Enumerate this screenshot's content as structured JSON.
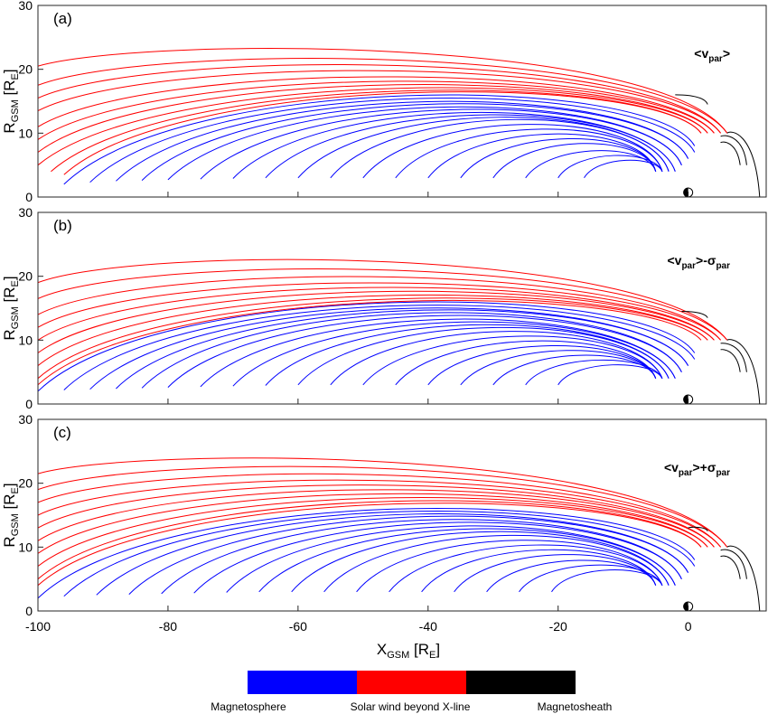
{
  "figure": {
    "x_label_main": "X",
    "x_label_sub": "GSM",
    "x_label_unit": " [R",
    "x_label_unit_sub": "E",
    "x_label_close": "]",
    "y_label_main": "R",
    "y_label_sub": "GSM",
    "y_label_unit": " [R",
    "y_label_unit_sub": "E",
    "y_label_close": "]"
  },
  "colorbar": {
    "segments": [
      {
        "label": "Magnetosphere",
        "color": "#0000ff"
      },
      {
        "label": "Solar wind beyond X-line",
        "color": "#ff0000"
      },
      {
        "label": "Magnetosheath",
        "color": "#000000"
      }
    ]
  },
  "chart_data": [
    {
      "type": "line",
      "panel": "(a)",
      "annotation": {
        "prefix": "<v",
        "sub": "par",
        "suffix": ">",
        "op": "",
        "sigma_sub": ""
      },
      "xlim": [
        -100,
        12
      ],
      "ylim": [
        0,
        30
      ],
      "xticks": [
        -100,
        -80,
        -60,
        -40,
        -20,
        0
      ],
      "yticks": [
        0,
        10,
        20,
        30
      ],
      "show_xticklabels": false,
      "colors": {
        "magnetosphere": "#0000ff",
        "solar_wind": "#ff0000",
        "magnetosheath": "#000000"
      },
      "field_lines": {
        "solar_wind": [
          {
            "x0": -100,
            "y0": 20.5,
            "apex_x": -35,
            "apex_y": 25.2,
            "end_x": 6,
            "end_y": 10
          },
          {
            "x0": -100,
            "y0": 17.5,
            "apex_x": -34,
            "apex_y": 24.0,
            "end_x": 6,
            "end_y": 10
          },
          {
            "x0": -100,
            "y0": 15.5,
            "apex_x": -33,
            "apex_y": 23.2,
            "end_x": 5,
            "end_y": 10
          },
          {
            "x0": -100,
            "y0": 13.5,
            "apex_x": -32,
            "apex_y": 22.4,
            "end_x": 5,
            "end_y": 10
          },
          {
            "x0": -100,
            "y0": 11.0,
            "apex_x": -31,
            "apex_y": 21.6,
            "end_x": 4,
            "end_y": 10
          },
          {
            "x0": -100,
            "y0": 9.0,
            "apex_x": -30,
            "apex_y": 21.0,
            "end_x": 4,
            "end_y": 10
          },
          {
            "x0": -100,
            "y0": 7.0,
            "apex_x": -29,
            "apex_y": 20.6,
            "end_x": 3,
            "end_y": 10
          },
          {
            "x0": -100,
            "y0": 5.0,
            "apex_x": -28,
            "apex_y": 20.2,
            "end_x": 3,
            "end_y": 10
          },
          {
            "x0": -98,
            "y0": 4.0,
            "apex_x": -27,
            "apex_y": 19.8,
            "end_x": 2,
            "end_y": 10
          },
          {
            "x0": -96,
            "y0": 3.5,
            "apex_x": -26,
            "apex_y": 19.5,
            "end_x": 2,
            "end_y": 10
          }
        ],
        "magnetosphere": [
          {
            "x0": -96,
            "y0": 2.0,
            "apex_x": -25,
            "apex_y": 19.5,
            "end_x": 1,
            "end_y": 8
          },
          {
            "x0": -92,
            "y0": 2.3,
            "apex_x": -24,
            "apex_y": 19.0,
            "end_x": 1,
            "end_y": 7
          },
          {
            "x0": -88,
            "y0": 2.5,
            "apex_x": -23,
            "apex_y": 18.5,
            "end_x": 0,
            "end_y": 6
          },
          {
            "x0": -84,
            "y0": 2.6,
            "apex_x": -22,
            "apex_y": 18.0,
            "end_x": 0,
            "end_y": 6
          },
          {
            "x0": -80,
            "y0": 2.7,
            "apex_x": -21,
            "apex_y": 17.5,
            "end_x": -1,
            "end_y": 5
          },
          {
            "x0": -75,
            "y0": 2.8,
            "apex_x": -20,
            "apex_y": 17.0,
            "end_x": -1,
            "end_y": 5
          },
          {
            "x0": -70,
            "y0": 2.9,
            "apex_x": -19,
            "apex_y": 16.5,
            "end_x": -2,
            "end_y": 4
          },
          {
            "x0": -65,
            "y0": 3.0,
            "apex_x": -18,
            "apex_y": 16.0,
            "end_x": -2,
            "end_y": 4
          },
          {
            "x0": -60,
            "y0": 3.0,
            "apex_x": -17,
            "apex_y": 15.5,
            "end_x": -3,
            "end_y": 4
          },
          {
            "x0": -55,
            "y0": 3.0,
            "apex_x": -16,
            "apex_y": 15.0,
            "end_x": -3,
            "end_y": 4
          },
          {
            "x0": -50,
            "y0": 3.0,
            "apex_x": -15,
            "apex_y": 14.0,
            "end_x": -4,
            "end_y": 4
          },
          {
            "x0": -45,
            "y0": 3.0,
            "apex_x": -14,
            "apex_y": 13.0,
            "end_x": -4,
            "end_y": 4
          },
          {
            "x0": -40,
            "y0": 3.0,
            "apex_x": -13,
            "apex_y": 12.0,
            "end_x": -5,
            "end_y": 4
          },
          {
            "x0": -35,
            "y0": 3.0,
            "apex_x": -12,
            "apex_y": 11.0,
            "end_x": -5,
            "end_y": 4
          },
          {
            "x0": -30,
            "y0": 3.0,
            "apex_x": -11,
            "apex_y": 10.0,
            "end_x": -5,
            "end_y": 4
          },
          {
            "x0": -25,
            "y0": 3.0,
            "apex_x": -10,
            "apex_y": 8.5,
            "end_x": -5,
            "end_y": 4
          },
          {
            "x0": -20,
            "y0": 3.0,
            "apex_x": -9,
            "apex_y": 7.5,
            "end_x": -4,
            "end_y": 4
          },
          {
            "x0": -16,
            "y0": 3.0,
            "apex_x": -8,
            "apex_y": 6.5,
            "end_x": -4,
            "end_y": 4
          }
        ],
        "magnetosheath": [
          {
            "x0": 6,
            "y0": 10.0,
            "apex_x": 8,
            "apex_y": 10.5,
            "end_x": 11,
            "end_y": 0
          },
          {
            "x0": 5,
            "y0": 9.5,
            "apex_x": 7,
            "apex_y": 9.8,
            "end_x": 9,
            "end_y": 5
          },
          {
            "x0": 5,
            "y0": 8.5,
            "apex_x": 6,
            "apex_y": 8.8,
            "end_x": 8,
            "end_y": 5
          },
          {
            "x0": -2,
            "y0": 16.0,
            "apex_x": 1,
            "apex_y": 16.0,
            "end_x": 3,
            "end_y": 14.5
          }
        ]
      }
    },
    {
      "type": "line",
      "panel": "(b)",
      "annotation": {
        "prefix": "<v",
        "sub": "par",
        "suffix": ">",
        "op": "-σ",
        "sigma_sub": "par"
      },
      "xlim": [
        -100,
        12
      ],
      "ylim": [
        0,
        30
      ],
      "xticks": [
        -100,
        -80,
        -60,
        -40,
        -20,
        0
      ],
      "yticks": [
        0,
        10,
        20,
        30
      ],
      "show_xticklabels": false,
      "colors": {
        "magnetosphere": "#0000ff",
        "solar_wind": "#ff0000",
        "magnetosheath": "#000000"
      },
      "field_lines": {
        "solar_wind": [
          {
            "x0": -100,
            "y0": 19.0,
            "apex_x": -40,
            "apex_y": 24.8,
            "end_x": 6,
            "end_y": 10
          },
          {
            "x0": -100,
            "y0": 16.5,
            "apex_x": -38,
            "apex_y": 23.5,
            "end_x": 6,
            "end_y": 10
          },
          {
            "x0": -100,
            "y0": 14.0,
            "apex_x": -36,
            "apex_y": 22.5,
            "end_x": 5,
            "end_y": 10
          },
          {
            "x0": -100,
            "y0": 12.0,
            "apex_x": -35,
            "apex_y": 21.6,
            "end_x": 5,
            "end_y": 10
          },
          {
            "x0": -100,
            "y0": 10.0,
            "apex_x": -34,
            "apex_y": 21.0,
            "end_x": 4,
            "end_y": 10
          },
          {
            "x0": -100,
            "y0": 8.0,
            "apex_x": -33,
            "apex_y": 20.5,
            "end_x": 4,
            "end_y": 10
          },
          {
            "x0": -100,
            "y0": 6.0,
            "apex_x": -32,
            "apex_y": 20.0,
            "end_x": 3,
            "end_y": 10
          },
          {
            "x0": -100,
            "y0": 4.0,
            "apex_x": -31,
            "apex_y": 19.6,
            "end_x": 3,
            "end_y": 10
          },
          {
            "x0": -100,
            "y0": 3.0,
            "apex_x": -30,
            "apex_y": 19.2,
            "end_x": 2,
            "end_y": 10
          }
        ],
        "magnetosphere": [
          {
            "x0": -100,
            "y0": 2.0,
            "apex_x": -29,
            "apex_y": 19.5,
            "end_x": 1,
            "end_y": 8
          },
          {
            "x0": -96,
            "y0": 2.2,
            "apex_x": -28,
            "apex_y": 19.0,
            "end_x": 1,
            "end_y": 7
          },
          {
            "x0": -92,
            "y0": 2.3,
            "apex_x": -27,
            "apex_y": 18.6,
            "end_x": 0,
            "end_y": 6
          },
          {
            "x0": -88,
            "y0": 2.4,
            "apex_x": -26,
            "apex_y": 18.2,
            "end_x": 0,
            "end_y": 6
          },
          {
            "x0": -84,
            "y0": 2.5,
            "apex_x": -25,
            "apex_y": 17.8,
            "end_x": -1,
            "end_y": 5
          },
          {
            "x0": -80,
            "y0": 2.6,
            "apex_x": -24,
            "apex_y": 17.2,
            "end_x": -1,
            "end_y": 5
          },
          {
            "x0": -75,
            "y0": 2.7,
            "apex_x": -23,
            "apex_y": 16.6,
            "end_x": -2,
            "end_y": 4
          },
          {
            "x0": -70,
            "y0": 2.8,
            "apex_x": -22,
            "apex_y": 16.0,
            "end_x": -2,
            "end_y": 4
          },
          {
            "x0": -65,
            "y0": 2.9,
            "apex_x": -21,
            "apex_y": 15.4,
            "end_x": -3,
            "end_y": 4
          },
          {
            "x0": -60,
            "y0": 3.0,
            "apex_x": -20,
            "apex_y": 14.8,
            "end_x": -3,
            "end_y": 4
          },
          {
            "x0": -55,
            "y0": 3.0,
            "apex_x": -19,
            "apex_y": 14.0,
            "end_x": -4,
            "end_y": 4
          },
          {
            "x0": -50,
            "y0": 3.0,
            "apex_x": -17,
            "apex_y": 13.0,
            "end_x": -4,
            "end_y": 4
          },
          {
            "x0": -45,
            "y0": 3.0,
            "apex_x": -16,
            "apex_y": 12.0,
            "end_x": -5,
            "end_y": 4
          },
          {
            "x0": -40,
            "y0": 3.0,
            "apex_x": -15,
            "apex_y": 11.0,
            "end_x": -5,
            "end_y": 4
          },
          {
            "x0": -35,
            "y0": 3.0,
            "apex_x": -13,
            "apex_y": 10.0,
            "end_x": -5,
            "end_y": 4
          },
          {
            "x0": -30,
            "y0": 3.0,
            "apex_x": -12,
            "apex_y": 9.0,
            "end_x": -5,
            "end_y": 4
          },
          {
            "x0": -25,
            "y0": 3.0,
            "apex_x": -11,
            "apex_y": 8.0,
            "end_x": -4,
            "end_y": 4
          },
          {
            "x0": -20,
            "y0": 3.0,
            "apex_x": -10,
            "apex_y": 7.0,
            "end_x": -4,
            "end_y": 4
          }
        ],
        "magnetosheath": [
          {
            "x0": 6,
            "y0": 10.0,
            "apex_x": 8,
            "apex_y": 10.3,
            "end_x": 11,
            "end_y": 0
          },
          {
            "x0": 5,
            "y0": 9.5,
            "apex_x": 7,
            "apex_y": 9.6,
            "end_x": 9,
            "end_y": 5
          },
          {
            "x0": 5,
            "y0": 8.5,
            "apex_x": 6,
            "apex_y": 8.6,
            "end_x": 8,
            "end_y": 5
          },
          {
            "x0": -1,
            "y0": 14.5,
            "apex_x": 1,
            "apex_y": 14.5,
            "end_x": 3,
            "end_y": 13.5
          }
        ]
      }
    },
    {
      "type": "line",
      "panel": "(c)",
      "annotation": {
        "prefix": "<v",
        "sub": "par",
        "suffix": ">",
        "op": "+σ",
        "sigma_sub": "par"
      },
      "xlim": [
        -100,
        12
      ],
      "ylim": [
        0,
        30
      ],
      "xticks": [
        -100,
        -80,
        -60,
        -40,
        -20,
        0
      ],
      "yticks": [
        0,
        10,
        20,
        30
      ],
      "show_xticklabels": true,
      "colors": {
        "magnetosphere": "#0000ff",
        "solar_wind": "#ff0000",
        "magnetosheath": "#000000"
      },
      "field_lines": {
        "solar_wind": [
          {
            "x0": -100,
            "y0": 21.5,
            "apex_x": -40,
            "apex_y": 25.8,
            "end_x": 6,
            "end_y": 10
          },
          {
            "x0": -100,
            "y0": 19.0,
            "apex_x": -38,
            "apex_y": 24.8,
            "end_x": 6,
            "end_y": 10
          },
          {
            "x0": -100,
            "y0": 17.0,
            "apex_x": -36,
            "apex_y": 23.8,
            "end_x": 5,
            "end_y": 10
          },
          {
            "x0": -100,
            "y0": 15.0,
            "apex_x": -35,
            "apex_y": 23.0,
            "end_x": 5,
            "end_y": 10
          },
          {
            "x0": -100,
            "y0": 13.0,
            "apex_x": -34,
            "apex_y": 22.4,
            "end_x": 4,
            "end_y": 10
          },
          {
            "x0": -100,
            "y0": 11.0,
            "apex_x": -33,
            "apex_y": 21.8,
            "end_x": 4,
            "end_y": 10
          },
          {
            "x0": -100,
            "y0": 9.0,
            "apex_x": -32,
            "apex_y": 21.3,
            "end_x": 3,
            "end_y": 10
          },
          {
            "x0": -100,
            "y0": 7.0,
            "apex_x": -31,
            "apex_y": 20.8,
            "end_x": 3,
            "end_y": 10
          },
          {
            "x0": -100,
            "y0": 5.0,
            "apex_x": -30,
            "apex_y": 20.4,
            "end_x": 2,
            "end_y": 10
          },
          {
            "x0": -100,
            "y0": 4.0,
            "apex_x": -29,
            "apex_y": 20.0,
            "end_x": 2,
            "end_y": 10
          }
        ],
        "magnetosphere": [
          {
            "x0": -100,
            "y0": 2.0,
            "apex_x": -28,
            "apex_y": 19.6,
            "end_x": 1,
            "end_y": 8
          },
          {
            "x0": -96,
            "y0": 2.3,
            "apex_x": -27,
            "apex_y": 19.2,
            "end_x": 1,
            "end_y": 7
          },
          {
            "x0": -91,
            "y0": 2.5,
            "apex_x": -26,
            "apex_y": 18.8,
            "end_x": 0,
            "end_y": 6
          },
          {
            "x0": -86,
            "y0": 2.6,
            "apex_x": -25,
            "apex_y": 18.3,
            "end_x": 0,
            "end_y": 6
          },
          {
            "x0": -81,
            "y0": 2.7,
            "apex_x": -24,
            "apex_y": 17.8,
            "end_x": -1,
            "end_y": 5
          },
          {
            "x0": -76,
            "y0": 2.8,
            "apex_x": -23,
            "apex_y": 17.2,
            "end_x": -1,
            "end_y": 5
          },
          {
            "x0": -71,
            "y0": 2.9,
            "apex_x": -22,
            "apex_y": 16.6,
            "end_x": -2,
            "end_y": 4
          },
          {
            "x0": -66,
            "y0": 3.0,
            "apex_x": -21,
            "apex_y": 16.0,
            "end_x": -2,
            "end_y": 4
          },
          {
            "x0": -61,
            "y0": 3.0,
            "apex_x": -20,
            "apex_y": 15.4,
            "end_x": -3,
            "end_y": 4
          },
          {
            "x0": -56,
            "y0": 3.0,
            "apex_x": -19,
            "apex_y": 14.6,
            "end_x": -3,
            "end_y": 4
          },
          {
            "x0": -51,
            "y0": 3.0,
            "apex_x": -18,
            "apex_y": 13.6,
            "end_x": -4,
            "end_y": 4
          },
          {
            "x0": -46,
            "y0": 3.0,
            "apex_x": -16,
            "apex_y": 12.6,
            "end_x": -4,
            "end_y": 4
          },
          {
            "x0": -41,
            "y0": 3.0,
            "apex_x": -15,
            "apex_y": 11.6,
            "end_x": -5,
            "end_y": 4
          },
          {
            "x0": -36,
            "y0": 3.0,
            "apex_x": -14,
            "apex_y": 10.6,
            "end_x": -5,
            "end_y": 4
          },
          {
            "x0": -31,
            "y0": 3.0,
            "apex_x": -12,
            "apex_y": 9.4,
            "end_x": -5,
            "end_y": 4
          },
          {
            "x0": -26,
            "y0": 3.0,
            "apex_x": -11,
            "apex_y": 8.4,
            "end_x": -4,
            "end_y": 4
          },
          {
            "x0": -21,
            "y0": 3.0,
            "apex_x": -10,
            "apex_y": 7.4,
            "end_x": -4,
            "end_y": 4
          }
        ],
        "magnetosheath": [
          {
            "x0": 6,
            "y0": 10.0,
            "apex_x": 8,
            "apex_y": 10.5,
            "end_x": 11,
            "end_y": 0
          },
          {
            "x0": 5,
            "y0": 9.5,
            "apex_x": 7,
            "apex_y": 9.8,
            "end_x": 9,
            "end_y": 5
          },
          {
            "x0": 5,
            "y0": 8.5,
            "apex_x": 6,
            "apex_y": 8.8,
            "end_x": 8,
            "end_y": 5
          },
          {
            "x0": 0,
            "y0": 13.0,
            "apex_x": 2,
            "apex_y": 13.2,
            "end_x": 3,
            "end_y": 12.5
          }
        ]
      }
    }
  ]
}
